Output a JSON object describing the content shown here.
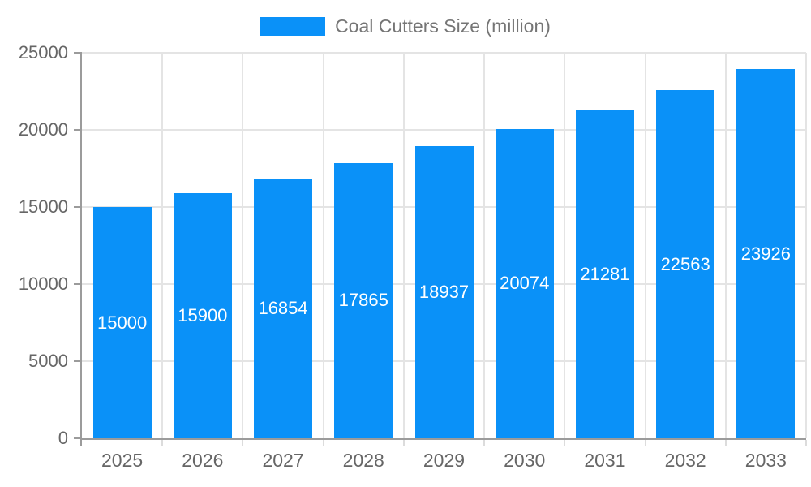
{
  "chart_data": {
    "type": "bar",
    "title": "Coal Cutters Size (million)",
    "legend_label": "Coal Cutters Size (million)",
    "legend_position": "top",
    "categories": [
      "2025",
      "2026",
      "2027",
      "2028",
      "2029",
      "2030",
      "2031",
      "2032",
      "2033"
    ],
    "values": [
      15000,
      15900,
      16854,
      17865,
      18937,
      20074,
      21281,
      22563,
      23926
    ],
    "xlabel": "",
    "ylabel": "",
    "ylim": [
      0,
      25000
    ],
    "yticks": [
      0,
      5000,
      10000,
      15000,
      20000,
      25000
    ],
    "grid": true,
    "value_labels": "inside-center",
    "colors": {
      "bar": "#0a91f8",
      "bar_value_text": "#ffffff",
      "gridline": "#e4e4e4",
      "axis_line": "#9b9b9b",
      "tick_minor": "#dcdcdc",
      "axis_text": "#666666",
      "legend_text": "#757575",
      "background": "#ffffff"
    }
  }
}
